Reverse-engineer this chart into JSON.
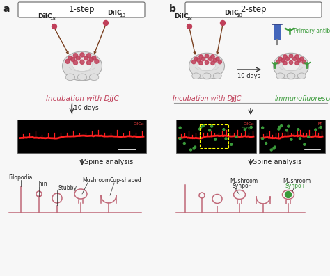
{
  "panel_a_label": "a",
  "panel_b_label": "b",
  "step_a_title": "1-step",
  "step_b_title": "2-step",
  "primary_antibody_label": "Primary antibody",
  "immunofluorescence_label": "Immunofluorescence",
  "ten_days": "10 days",
  "spine_analysis": "Spine analysis",
  "diic_color": "#c0405a",
  "green_color": "#3a9a3a",
  "spine_color": "#c06878",
  "bg_color": "#f7f7f7",
  "text_color": "#222222",
  "arrow_color": "#333333",
  "brain_outer_color": "#e0e0e0",
  "brain_inner_color": "#eeeeee",
  "brain_edge_color": "#aaaaaa",
  "needle_color": "#8B5030"
}
